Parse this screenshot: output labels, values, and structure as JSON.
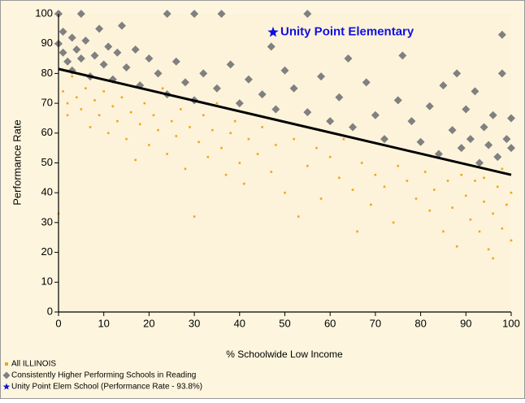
{
  "chart_data": {
    "type": "scatter",
    "y_label": "Performance Rate",
    "x_label": "% Schoolwide Low Income",
    "annotation": "Unity Point Elementary",
    "xlim": [
      0,
      100
    ],
    "ylim": [
      0,
      100
    ],
    "xticks": [
      0,
      10,
      20,
      30,
      40,
      50,
      60,
      70,
      80,
      90,
      100
    ],
    "yticks": [
      0,
      10,
      20,
      30,
      40,
      50,
      60,
      70,
      80,
      90,
      100
    ],
    "series": [
      {
        "name": "All ILLINOIS",
        "color": "#f5a418",
        "marker": "square",
        "x": [
          0,
          1,
          2,
          2,
          3,
          4,
          5,
          6,
          7,
          8,
          9,
          10,
          11,
          12,
          13,
          14,
          15,
          16,
          17,
          18,
          19,
          20,
          21,
          22,
          23,
          24,
          25,
          26,
          27,
          28,
          29,
          30,
          31,
          32,
          33,
          34,
          35,
          36,
          37,
          38,
          39,
          40,
          41,
          42,
          44,
          45,
          47,
          48,
          50,
          52,
          53,
          55,
          57,
          58,
          60,
          62,
          63,
          65,
          66,
          67,
          69,
          70,
          72,
          74,
          75,
          77,
          79,
          81,
          82,
          83,
          85,
          86,
          87,
          88,
          89,
          90,
          91,
          92,
          93,
          94,
          95,
          96,
          97,
          98,
          99,
          100,
          100,
          98,
          96,
          94
        ],
        "values": [
          33,
          74,
          70,
          66,
          79,
          72,
          68,
          75,
          62,
          71,
          66,
          74,
          60,
          69,
          64,
          72,
          58,
          67,
          51,
          63,
          70,
          56,
          66,
          61,
          75,
          53,
          64,
          59,
          68,
          48,
          62,
          32,
          57,
          66,
          52,
          61,
          70,
          55,
          46,
          60,
          64,
          50,
          43,
          58,
          53,
          62,
          47,
          56,
          40,
          58,
          32,
          49,
          55,
          38,
          52,
          45,
          58,
          41,
          27,
          50,
          36,
          46,
          42,
          30,
          49,
          44,
          38,
          47,
          34,
          41,
          27,
          44,
          35,
          22,
          46,
          39,
          31,
          44,
          27,
          37,
          21,
          33,
          42,
          28,
          36,
          24,
          40,
          48,
          18,
          45
        ]
      },
      {
        "name": "Consistently Higher Performing Schools in Reading",
        "color": "#808080",
        "marker": "diamond",
        "x": [
          0,
          0,
          1,
          1,
          2,
          3,
          3,
          4,
          5,
          5,
          6,
          7,
          8,
          9,
          10,
          11,
          12,
          13,
          14,
          15,
          17,
          18,
          20,
          22,
          24,
          24,
          26,
          28,
          30,
          30,
          32,
          35,
          36,
          38,
          40,
          42,
          45,
          47,
          48,
          50,
          52,
          55,
          55,
          58,
          60,
          62,
          64,
          65,
          68,
          70,
          72,
          75,
          76,
          78,
          80,
          82,
          84,
          85,
          87,
          88,
          89,
          90,
          91,
          92,
          93,
          94,
          95,
          96,
          97,
          98,
          98,
          99,
          100,
          100
        ],
        "values": [
          100,
          90,
          87,
          94,
          84,
          92,
          81,
          88,
          100,
          85,
          91,
          79,
          86,
          95,
          83,
          89,
          78,
          87,
          96,
          82,
          88,
          76,
          85,
          80,
          100,
          73,
          84,
          77,
          100,
          71,
          80,
          75,
          100,
          83,
          70,
          78,
          73,
          89,
          68,
          81,
          75,
          100,
          67,
          79,
          64,
          72,
          85,
          62,
          77,
          66,
          58,
          71,
          86,
          64,
          57,
          69,
          53,
          76,
          61,
          80,
          55,
          68,
          58,
          74,
          50,
          62,
          56,
          66,
          52,
          93,
          80,
          58,
          65,
          55
        ]
      },
      {
        "name": "Unity Point Elem School (Performance Rate - 93.8%)",
        "color": "#1010e0",
        "marker": "star",
        "x": [
          47.4
        ],
        "values": [
          93.8
        ]
      }
    ],
    "trendline": {
      "color": "#000000",
      "x": [
        0,
        100
      ],
      "values": [
        81.5,
        46
      ]
    }
  }
}
